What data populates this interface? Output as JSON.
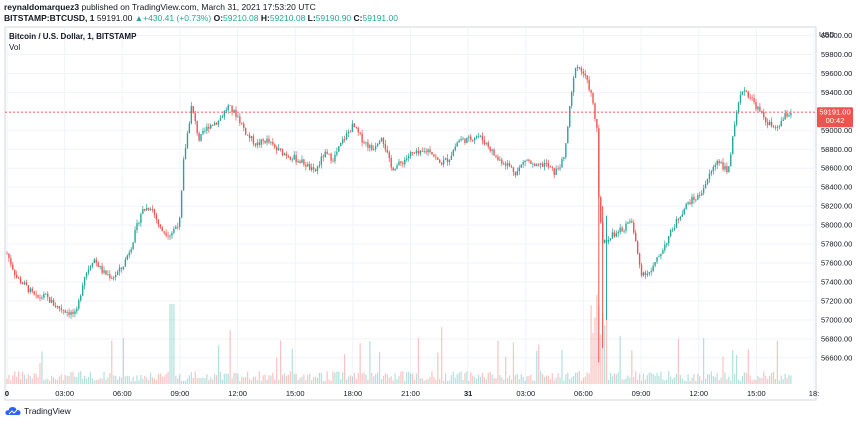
{
  "header": {
    "author": "reynaldomarquez3",
    "published_text": "published on TradingView.com, March 31, 2021 17:53:20 UTC",
    "symbol": "BITSTAMP:BTCUSD, 1",
    "last": "59191.00",
    "change": "+430.41 (+0.73%)",
    "o_label": "O:",
    "o_val": "59210.08",
    "h_label": "H:",
    "h_val": "59210.08",
    "l_label": "L:",
    "l_val": "59190.90",
    "c_label": "C:",
    "c_val": "59191.00"
  },
  "legend": {
    "title": "Bitcoin / U.S. Dollar, 1, BITSTAMP",
    "vol": "Vol"
  },
  "price_tag": {
    "value": "59191.00",
    "countdown": "00:42"
  },
  "brand": "TradingView",
  "colors": {
    "up": "#26a69a",
    "down": "#ef5350",
    "tag": "#ef5350"
  },
  "chart_data": {
    "type": "candlestick",
    "title": "Bitcoin / U.S. Dollar, 1, BITSTAMP",
    "currency_label": "USD",
    "y_ticks": [
      "60000.00",
      "59800.00",
      "59600.00",
      "59400.00",
      "59200.00",
      "59000.00",
      "58800.00",
      "58600.00",
      "58400.00",
      "58200.00",
      "58000.00",
      "57800.00",
      "57600.00",
      "57400.00",
      "57200.00",
      "57000.00",
      "56800.00",
      "56600.00"
    ],
    "ylim": [
      56450,
      60090
    ],
    "x_ticks": [
      "0",
      "03:00",
      "06:00",
      "09:00",
      "12:00",
      "15:00",
      "18:00",
      "21:00",
      "31",
      "03:00",
      "06:00",
      "09:00",
      "12:00",
      "15:00",
      "18:"
    ],
    "last_price": 59191,
    "grid": true,
    "series_close": [
      {
        "t": 0.0,
        "p": 57700
      },
      {
        "t": 0.5,
        "p": 57450
      },
      {
        "t": 1.0,
        "p": 57350
      },
      {
        "t": 1.5,
        "p": 57230
      },
      {
        "t": 2.0,
        "p": 57250
      },
      {
        "t": 2.5,
        "p": 57150
      },
      {
        "t": 3.0,
        "p": 57100
      },
      {
        "t": 3.6,
        "p": 57050
      },
      {
        "t": 4.0,
        "p": 57450
      },
      {
        "t": 4.5,
        "p": 57650
      },
      {
        "t": 5.0,
        "p": 57500
      },
      {
        "t": 5.5,
        "p": 57450
      },
      {
        "t": 6.0,
        "p": 57550
      },
      {
        "t": 6.5,
        "p": 57800
      },
      {
        "t": 7.0,
        "p": 58150
      },
      {
        "t": 7.5,
        "p": 58200
      },
      {
        "t": 8.0,
        "p": 57950
      },
      {
        "t": 8.5,
        "p": 57900
      },
      {
        "t": 9.0,
        "p": 58050
      },
      {
        "t": 9.2,
        "p": 58700
      },
      {
        "t": 9.6,
        "p": 59250
      },
      {
        "t": 10.0,
        "p": 58900
      },
      {
        "t": 10.5,
        "p": 59050
      },
      {
        "t": 11.0,
        "p": 59100
      },
      {
        "t": 11.5,
        "p": 59250
      },
      {
        "t": 12.0,
        "p": 59150
      },
      {
        "t": 12.5,
        "p": 58950
      },
      {
        "t": 13.0,
        "p": 58850
      },
      {
        "t": 13.5,
        "p": 58900
      },
      {
        "t": 14.0,
        "p": 58800
      },
      {
        "t": 14.5,
        "p": 58750
      },
      {
        "t": 15.0,
        "p": 58700
      },
      {
        "t": 15.5,
        "p": 58650
      },
      {
        "t": 16.0,
        "p": 58550
      },
      {
        "t": 16.5,
        "p": 58750
      },
      {
        "t": 17.0,
        "p": 58700
      },
      {
        "t": 17.5,
        "p": 58900
      },
      {
        "t": 18.0,
        "p": 59050
      },
      {
        "t": 18.5,
        "p": 58900
      },
      {
        "t": 19.0,
        "p": 58800
      },
      {
        "t": 19.5,
        "p": 58950
      },
      {
        "t": 20.0,
        "p": 58600
      },
      {
        "t": 20.5,
        "p": 58650
      },
      {
        "t": 21.0,
        "p": 58750
      },
      {
        "t": 21.5,
        "p": 58750
      },
      {
        "t": 22.0,
        "p": 58800
      },
      {
        "t": 22.5,
        "p": 58650
      },
      {
        "t": 23.0,
        "p": 58700
      },
      {
        "t": 23.5,
        "p": 58900
      },
      {
        "t": 24.0,
        "p": 58900
      },
      {
        "t": 24.5,
        "p": 58950
      },
      {
        "t": 25.0,
        "p": 58850
      },
      {
        "t": 25.5,
        "p": 58700
      },
      {
        "t": 26.0,
        "p": 58650
      },
      {
        "t": 26.5,
        "p": 58550
      },
      {
        "t": 27.0,
        "p": 58700
      },
      {
        "t": 27.5,
        "p": 58600
      },
      {
        "t": 28.0,
        "p": 58650
      },
      {
        "t": 28.5,
        "p": 58550
      },
      {
        "t": 29.0,
        "p": 58700
      },
      {
        "t": 29.3,
        "p": 59250
      },
      {
        "t": 29.6,
        "p": 59700
      },
      {
        "t": 30.0,
        "p": 59600
      },
      {
        "t": 30.3,
        "p": 59450
      },
      {
        "t": 30.5,
        "p": 59300
      },
      {
        "t": 30.7,
        "p": 59000
      },
      {
        "t": 30.8,
        "p": 58300
      },
      {
        "t": 31.0,
        "p": 57800
      },
      {
        "t": 31.5,
        "p": 57900
      },
      {
        "t": 32.0,
        "p": 57950
      },
      {
        "t": 32.5,
        "p": 58050
      },
      {
        "t": 33.0,
        "p": 57500
      },
      {
        "t": 33.5,
        "p": 57500
      },
      {
        "t": 34.0,
        "p": 57700
      },
      {
        "t": 34.5,
        "p": 57900
      },
      {
        "t": 35.0,
        "p": 58100
      },
      {
        "t": 35.5,
        "p": 58250
      },
      {
        "t": 36.0,
        "p": 58300
      },
      {
        "t": 36.5,
        "p": 58500
      },
      {
        "t": 37.0,
        "p": 58700
      },
      {
        "t": 37.5,
        "p": 58550
      },
      {
        "t": 38.0,
        "p": 59200
      },
      {
        "t": 38.3,
        "p": 59450
      },
      {
        "t": 38.7,
        "p": 59350
      },
      {
        "t": 39.0,
        "p": 59250
      },
      {
        "t": 39.5,
        "p": 59100
      },
      {
        "t": 40.0,
        "p": 59000
      },
      {
        "t": 40.5,
        "p": 59150
      },
      {
        "t": 40.8,
        "p": 59191
      }
    ]
  }
}
